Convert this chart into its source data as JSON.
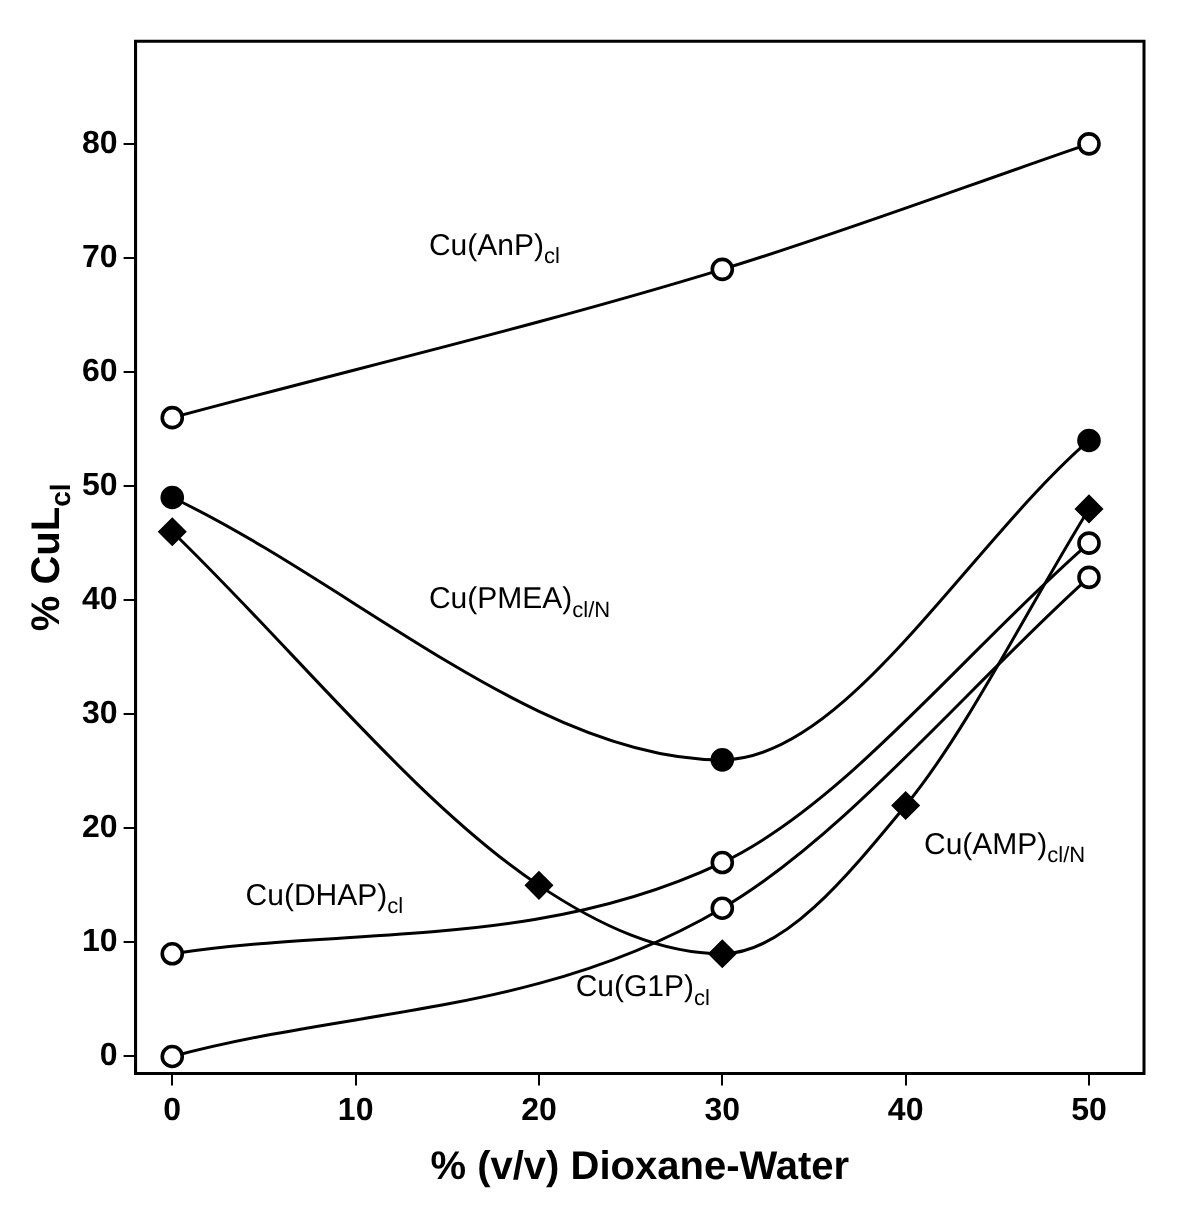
{
  "chart_data": {
    "type": "line",
    "xlabel": "% (v/v) Dioxane-Water",
    "ylabel": "% CuL$_{cl}$",
    "xlim": [
      -2,
      53
    ],
    "ylim": [
      -1.5,
      89
    ],
    "xticks": [
      0,
      10,
      20,
      30,
      40,
      50
    ],
    "yticks": [
      0,
      10,
      20,
      30,
      40,
      50,
      60,
      70,
      80
    ],
    "series": [
      {
        "name": "Cu(AnP)$_{cl}$",
        "color": "#000000",
        "marker": "circle",
        "x": [
          0,
          30,
          50
        ],
        "values": [
          56,
          69,
          80
        ]
      },
      {
        "name": "Cu(PMEA)$_{cl/N}$",
        "color": "#000000",
        "marker": "circle",
        "x": [
          0,
          30,
          50
        ],
        "values": [
          49,
          26,
          54
        ]
      },
      {
        "name": "Cu(AMP)$_{cl/N}$",
        "color": "#000000",
        "marker": "diamond",
        "x": [
          0,
          20,
          30,
          40,
          50
        ],
        "values": [
          46,
          15,
          9,
          22,
          48
        ]
      },
      {
        "name": "Cu(DHAP)$_{cl}$",
        "color": "#000000",
        "marker": "circle",
        "x": [
          0,
          30,
          50
        ],
        "values": [
          9,
          17,
          45
        ]
      },
      {
        "name": "Cu(G1P)$_{cl}$",
        "color": "#000000",
        "marker": "circle",
        "x": [
          0,
          30,
          50
        ],
        "values": [
          0,
          13,
          42
        ]
      }
    ]
  }
}
